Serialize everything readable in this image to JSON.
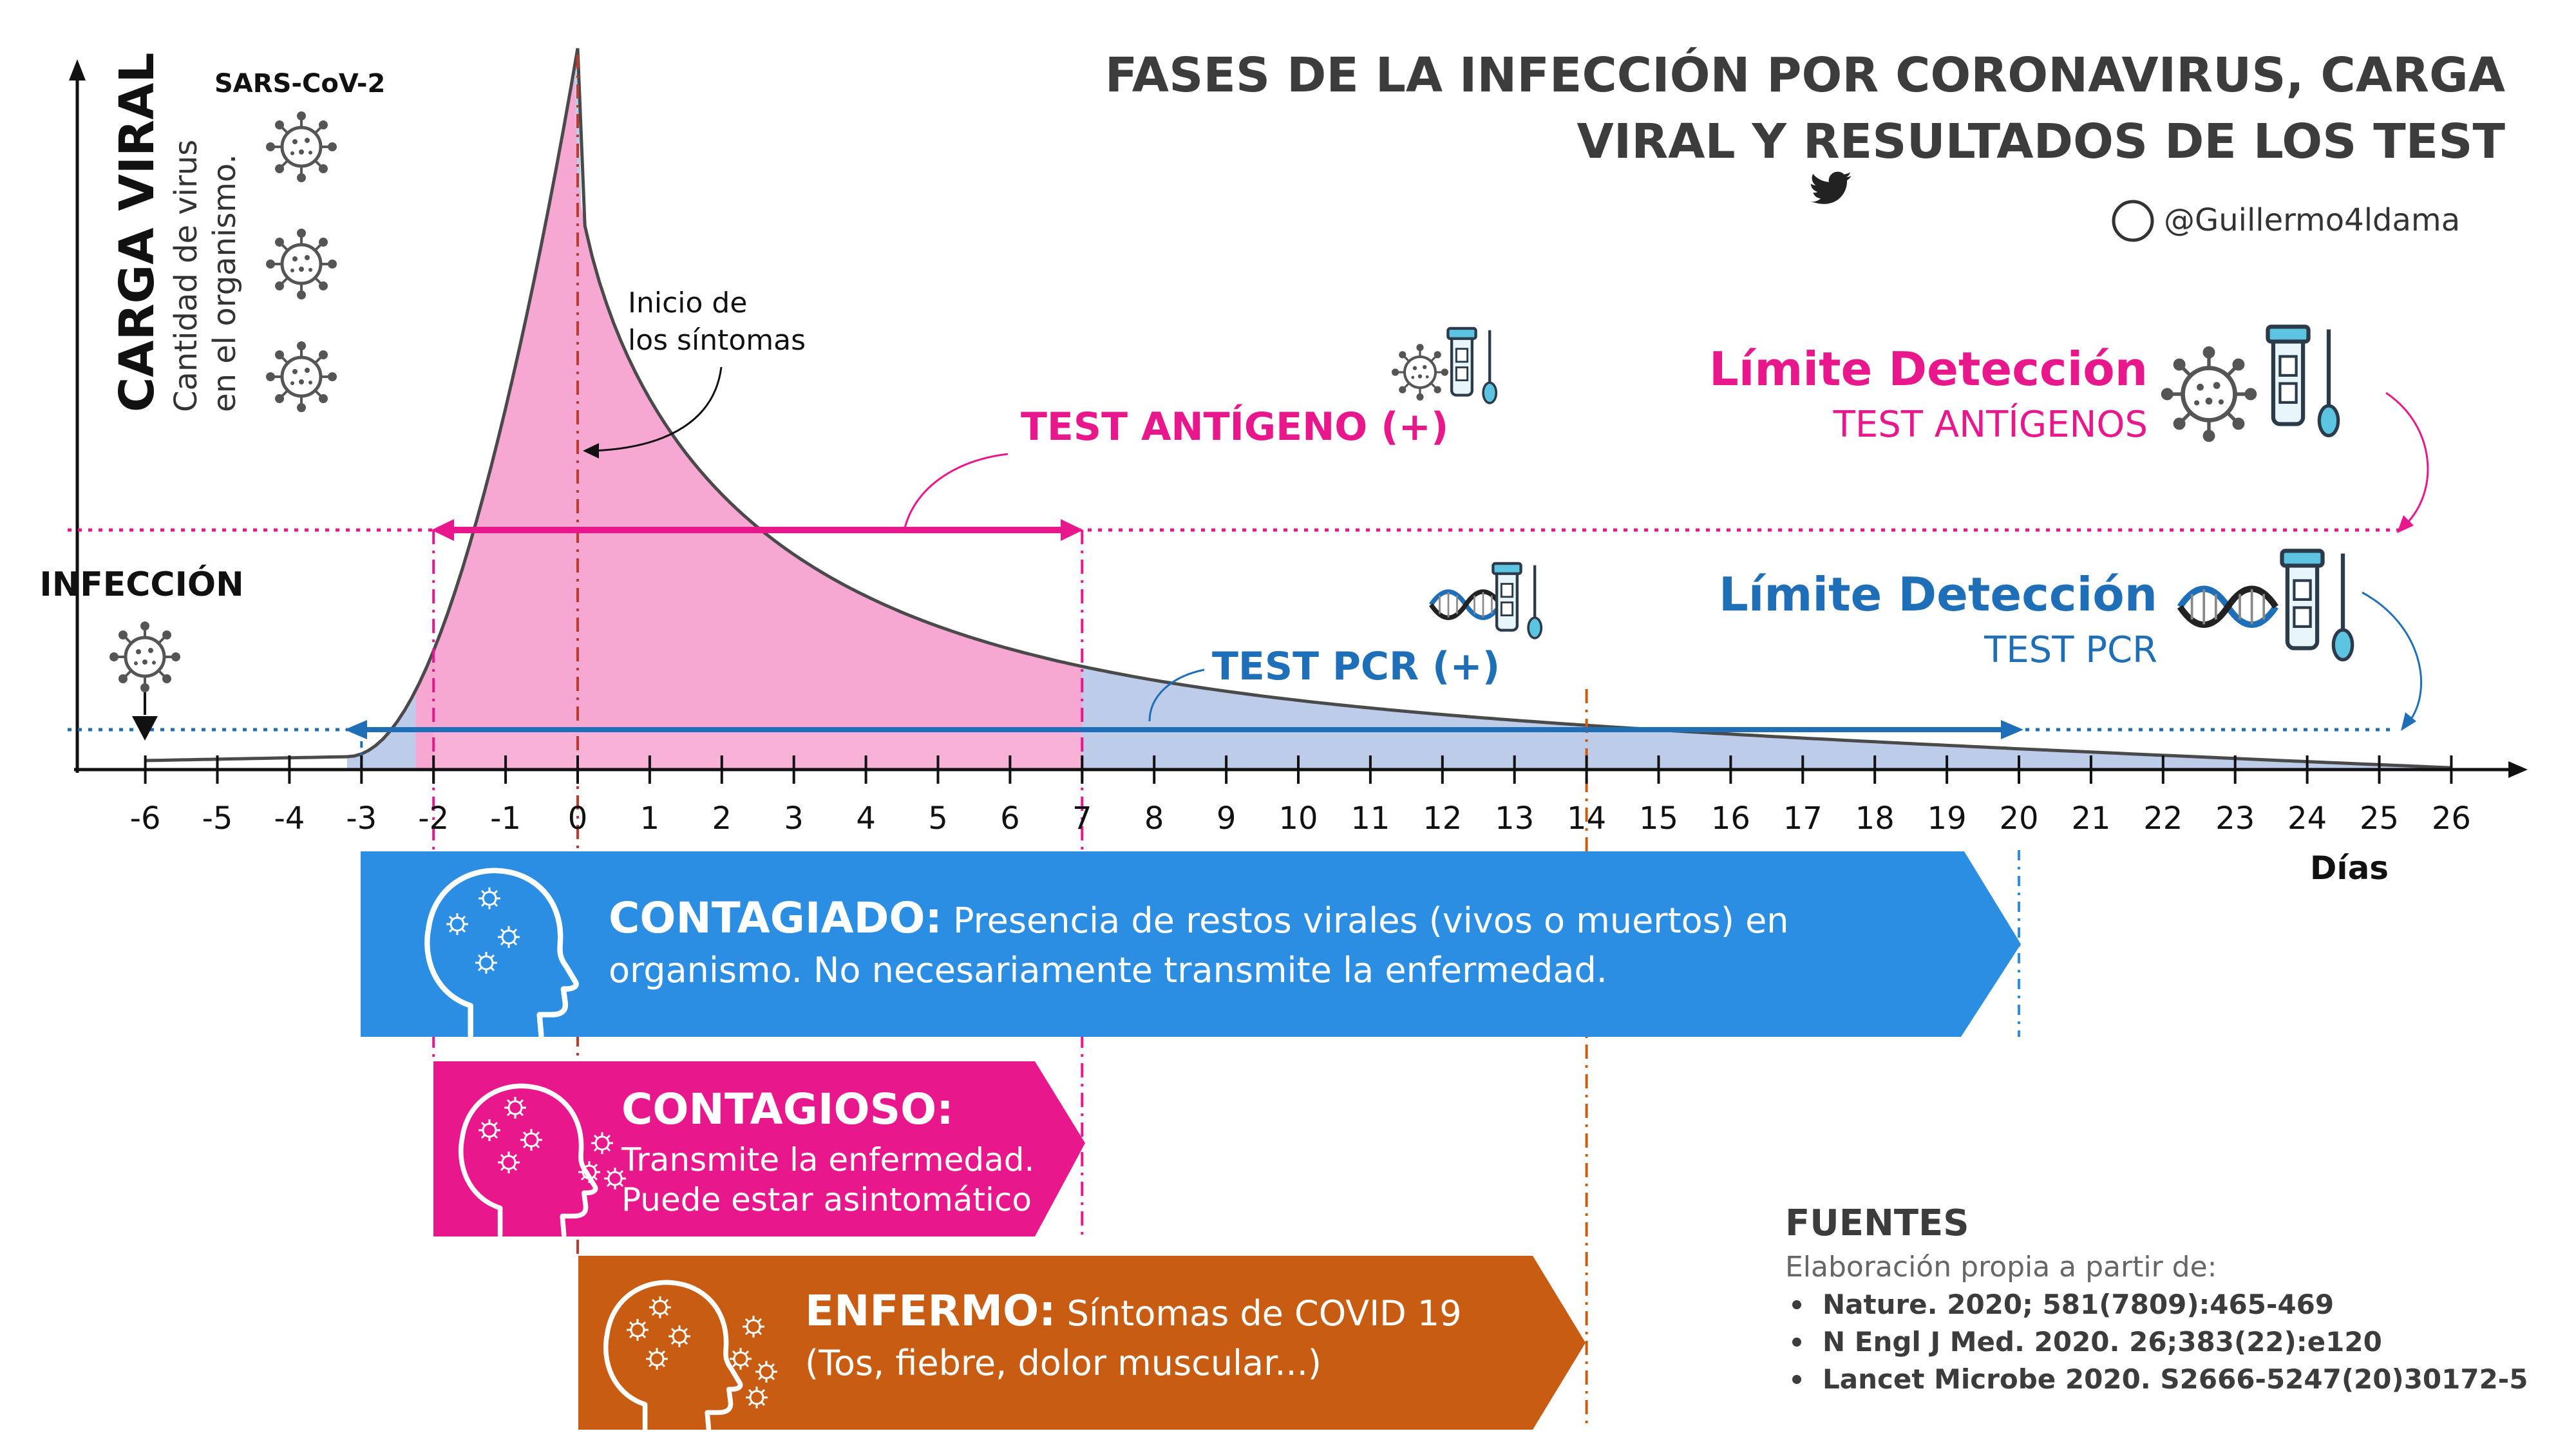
{
  "header": {
    "title_line1": "FASES DE LA INFECCIÓN POR CORONAVIRUS, CARGA",
    "title_line2": "VIRAL Y RESULTADOS DE LOS TEST",
    "twitter_handle": "@Guillermo4ldama",
    "twitter_icon": "twitter-bird-icon"
  },
  "yaxis": {
    "title": "CARGA VIRAL",
    "subtitle_line1": "Cantidad de virus",
    "subtitle_line2": "en el organismo.",
    "virus_label": "SARS-CoV-2"
  },
  "xaxis": {
    "unit_label": "Días",
    "ticks": [
      -6,
      -5,
      -4,
      -3,
      -2,
      -1,
      0,
      1,
      2,
      3,
      4,
      5,
      6,
      7,
      8,
      9,
      10,
      11,
      12,
      13,
      14,
      15,
      16,
      17,
      18,
      19,
      20,
      21,
      22,
      23,
      24,
      25,
      26
    ]
  },
  "annotations": {
    "infeccion": "INFECCIÓN",
    "inicio_line1": "Inicio de",
    "inicio_line2": "los síntomas",
    "test_antigeno": "TEST ANTÍGENO (+)",
    "test_pcr": "TEST PCR (+)"
  },
  "limits": {
    "antigen_title": "Límite Detección",
    "antigen_sub": "TEST ANTÍGENOS",
    "pcr_title": "Límite Detección",
    "pcr_sub": "TEST PCR"
  },
  "phases": {
    "contagiado_title": "CONTAGIADO:",
    "contagiado_line1": " Presencia de restos virales (vivos o muertos) en",
    "contagiado_line2": "organismo. No necesariamente transmite la enfermedad.",
    "contagioso_title": "CONTAGIOSO:",
    "contagioso_line1": "Transmite la enfermedad.",
    "contagioso_line2": "Puede estar asintomático",
    "enfermo_title": "ENFERMO:",
    "enfermo_line1": " Síntomas de COVID 19",
    "enfermo_line2": "(Tos, fiebre, dolor muscular...)"
  },
  "sources": {
    "title": "FUENTES",
    "intro": "Elaboración propia a partir de:",
    "items": [
      "Nature. 2020; 581(7809):465-469",
      "N Engl J Med. 2020. 26;383(22):e120",
      "Lancet Microbe 2020. S2666-5247(20)30172-5"
    ]
  },
  "colors": {
    "pink": "#e8188c",
    "pink_fill": "#f7a8d2",
    "blue": "#1e6fb8",
    "blue_bar": "#2b8ee3",
    "blue_fill": "#b9c9e8",
    "orange": "#c75c12",
    "title_gray": "#3c3c3c"
  },
  "chart_data": {
    "type": "area",
    "x_range": [
      -6,
      26
    ],
    "antigen_positive_days": [
      -2,
      7
    ],
    "pcr_positive_days": [
      -3,
      20
    ],
    "symptom_onset_day": 0,
    "peak_day": 0,
    "contagiado_days": [
      -3,
      20
    ],
    "contagioso_days": [
      -2,
      7
    ],
    "enfermo_days": [
      0,
      14
    ]
  }
}
